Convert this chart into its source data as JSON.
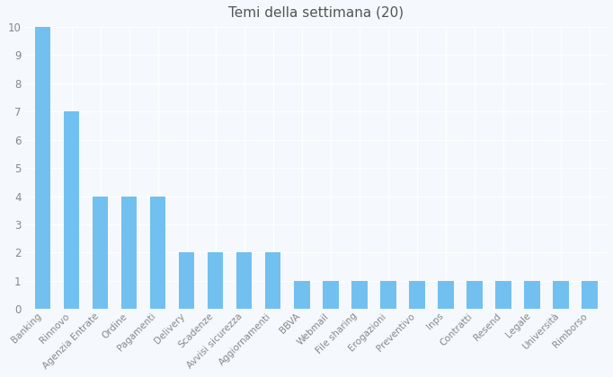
{
  "title": "Temi della settimana (20)",
  "categories": [
    "Banking",
    "Rinnovo",
    "Agenzia Entrate",
    "Ordine",
    "Pagamenti",
    "Delivery",
    "Scadenze",
    "Avvisi sicurezza",
    "Aggiornamenti",
    "BBVA",
    "Webmail",
    "File sharing",
    "Erogazioni",
    "Preventivo",
    "Inps",
    "Contratti",
    "Resend",
    "Legale",
    "Università",
    "Rimborso"
  ],
  "values": [
    10,
    7,
    4,
    4,
    4,
    2,
    2,
    2,
    2,
    1,
    1,
    1,
    1,
    1,
    1,
    1,
    1,
    1,
    1,
    1
  ],
  "bar_color": "#72C0F0",
  "background_color": "#f5f8fc",
  "plot_bg_color": "#f5f8fc",
  "grid_color": "#ffffff",
  "ylim": [
    0,
    10
  ],
  "yticks": [
    0,
    1,
    2,
    3,
    4,
    5,
    6,
    7,
    8,
    9,
    10
  ],
  "title_fontsize": 11,
  "tick_label_color": "#888888",
  "title_color": "#555555",
  "title_fontweight": "normal"
}
